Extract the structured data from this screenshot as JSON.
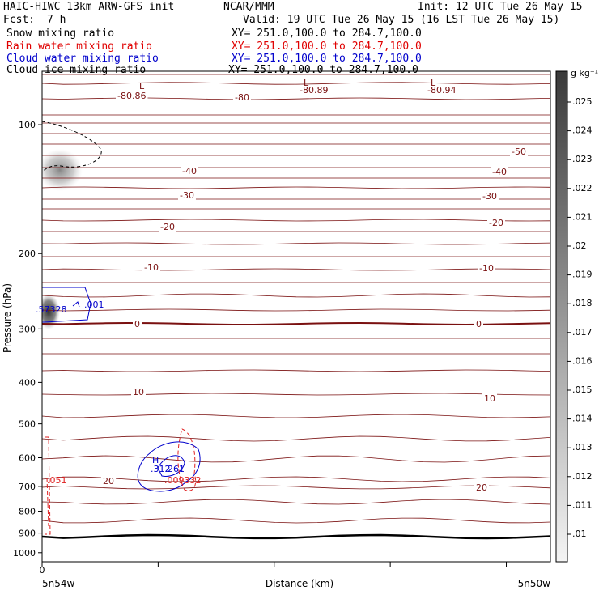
{
  "header": {
    "model_title": "HAIC-HIWC 13km ARW-GFS init",
    "center": "NCAR/MMM",
    "init_text": "Init: 12 UTC Tue 26 May 15",
    "fcst_label": "Fcst:",
    "fcst_value": "7 h",
    "valid_text": "Valid: 19 UTC Tue 26 May 15 (16 LST Tue 26 May 15)"
  },
  "legend": [
    {
      "name": "Snow mixing ratio",
      "xy": "XY= 251.0,100.0 to 284.7,100.0",
      "color": "#000000"
    },
    {
      "name": "Rain water mixing ratio",
      "xy": "XY= 251.0,100.0 to 284.7,100.0",
      "color": "#e00000"
    },
    {
      "name": "Cloud water mixing ratio",
      "xy": "XY= 251.0,100.0 to 284.7,100.0",
      "color": "#0000cc"
    },
    {
      "name": "Cloud ice mixing ratio",
      "xy": "XY= 251.0,100.0 to 284.7,100.0",
      "color": "#000000"
    }
  ],
  "chart_data": {
    "type": "contour",
    "xlabel": "Distance (km)",
    "ylabel": "Pressure (hPa)",
    "x_tick_labels": [
      "0"
    ],
    "x_end_labels": [
      "5n54w",
      "5n50w"
    ],
    "y_ticks": [
      100,
      200,
      300,
      400,
      500,
      600,
      700,
      800,
      900,
      1000
    ],
    "ylim": [
      1050,
      75
    ],
    "scale": "log",
    "colorbar": {
      "unit": "g kg⁻¹",
      "ticks": [
        ".01",
        ".011",
        ".012",
        ".013",
        ".014",
        ".015",
        ".016",
        ".017",
        ".018",
        ".019",
        ".02",
        ".021",
        ".022",
        ".023",
        ".024",
        ".025"
      ]
    },
    "temperature_labels": [
      "-80.86",
      "-80",
      "-80.89",
      "-80.94",
      "-50",
      "-40",
      "-30",
      "-20",
      "-10",
      "0",
      "10",
      "20"
    ],
    "extrema_labels": [
      "L",
      "L",
      "L",
      "H"
    ],
    "value_labels": [
      ".001",
      ".57328",
      ".051",
      ".312",
      "261",
      ".009332"
    ],
    "colors": {
      "temperature": "#7a1010",
      "rain": "#e02020",
      "cloud_water": "#0000cc",
      "snow": "#000000"
    }
  }
}
